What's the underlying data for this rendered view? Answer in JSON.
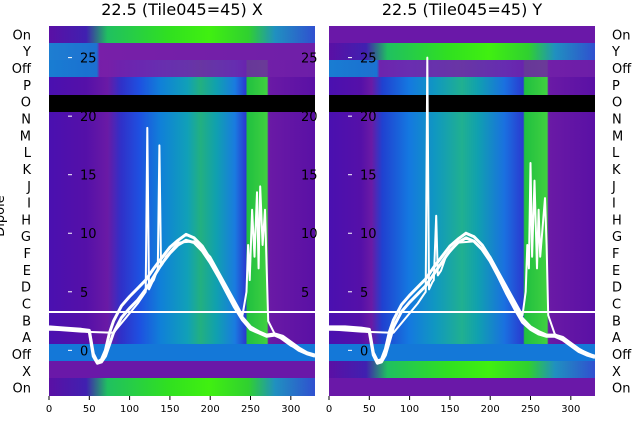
{
  "chart_data": [
    {
      "type": "heatmap",
      "title": "22.5 (Tile045=45) X",
      "ylabel": "Dipole",
      "xlim": [
        0,
        330
      ],
      "x_ticks": [
        0,
        50,
        100,
        150,
        200,
        250,
        300
      ],
      "y_ticks": [
        25,
        20,
        15,
        10,
        5,
        0
      ],
      "ylim": [
        -3.9,
        27.7
      ],
      "dipole_rows": [
        "On",
        "X",
        "Off",
        "A",
        "B",
        "C",
        "D",
        "E",
        "F",
        "G",
        "H",
        "I",
        "J",
        "K",
        "L",
        "M",
        "N",
        "O",
        "P",
        "Off",
        "Y",
        "On"
      ],
      "horizontal_line_row": "B/C",
      "black_row": "O",
      "bright_columns": [
        [
          245,
          272
        ]
      ],
      "series": [
        {
          "x": [
            0,
            20,
            40,
            50,
            55,
            60,
            65,
            70,
            75,
            80,
            90,
            100,
            110,
            120,
            130,
            140,
            150,
            160,
            170,
            180,
            190,
            200,
            210,
            220,
            230,
            240,
            250,
            260,
            270,
            280,
            290,
            300,
            310,
            320,
            330
          ],
          "y": [
            1.8,
            1.8,
            1.7,
            1.6,
            -0.5,
            -1.1,
            -1.0,
            -0.5,
            0.5,
            1.5,
            2.8,
            3.6,
            4.3,
            5.2,
            6.3,
            7.4,
            8.3,
            9.0,
            9.4,
            9.2,
            8.5,
            7.5,
            6.3,
            5.0,
            3.7,
            2.6,
            1.8,
            1.5,
            1.2,
            1.3,
            1.0,
            0.5,
            0.0,
            -0.3,
            -0.5
          ]
        },
        {
          "x": [
            0,
            20,
            40,
            50,
            55,
            60,
            65,
            70,
            75,
            80,
            90,
            100,
            110,
            120,
            130,
            140,
            150,
            160,
            170,
            180,
            190,
            200,
            210,
            220,
            230,
            240,
            250,
            260,
            270,
            280,
            290,
            300,
            310,
            320,
            330
          ],
          "y": [
            2.0,
            1.9,
            1.8,
            1.7,
            -0.3,
            -1.0,
            -0.8,
            0.0,
            1.5,
            2.5,
            3.8,
            4.6,
            5.3,
            6.0,
            7.0,
            7.9,
            8.8,
            9.4,
            9.9,
            9.6,
            8.9,
            7.8,
            6.6,
            5.2,
            3.9,
            2.8,
            2.0,
            1.6,
            1.3,
            1.4,
            1.2,
            0.7,
            0.2,
            -0.2,
            -0.4
          ]
        },
        {
          "x": [
            0,
            40,
            80,
            110,
            120,
            122,
            124,
            126,
            128,
            130,
            135,
            137,
            139,
            141,
            145,
            160,
            180,
            200,
            220,
            240,
            245,
            247,
            249,
            252,
            255,
            258,
            260,
            262,
            265,
            268,
            272,
            280,
            300,
            330
          ],
          "y": [
            1.8,
            1.6,
            1.5,
            4.0,
            5.0,
            19.0,
            5.2,
            5.5,
            5.8,
            6.0,
            7.0,
            17.5,
            7.2,
            7.4,
            8.0,
            9.2,
            9.3,
            8.0,
            5.5,
            3.0,
            5.0,
            9.0,
            6.0,
            12.0,
            8.0,
            13.5,
            7.0,
            14.0,
            9.0,
            12.0,
            2.5,
            1.4,
            0.4,
            -0.5
          ]
        }
      ]
    },
    {
      "type": "heatmap",
      "title": "22.5 (Tile045=45) Y",
      "xlim": [
        0,
        330
      ],
      "x_ticks": [
        0,
        50,
        100,
        150,
        200,
        250,
        300
      ],
      "y_ticks": [
        25,
        20,
        15,
        10,
        5,
        0
      ],
      "ylim": [
        -3.9,
        27.7
      ],
      "dipole_rows": [
        "On",
        "X",
        "Off",
        "A",
        "B",
        "C",
        "D",
        "E",
        "F",
        "G",
        "H",
        "I",
        "J",
        "K",
        "L",
        "M",
        "N",
        "O",
        "P",
        "Off",
        "Y",
        "On"
      ],
      "horizontal_line_row": "B/C",
      "black_row": "O",
      "bright_columns": [
        [
          242,
          270
        ]
      ],
      "series": [
        {
          "x": [
            0,
            20,
            40,
            50,
            55,
            60,
            65,
            70,
            75,
            80,
            90,
            100,
            110,
            120,
            130,
            140,
            150,
            160,
            170,
            180,
            190,
            200,
            210,
            220,
            230,
            240,
            250,
            260,
            270,
            280,
            290,
            300,
            310,
            320,
            330
          ],
          "y": [
            1.8,
            1.8,
            1.7,
            1.6,
            -0.4,
            -1.1,
            -1.0,
            -0.4,
            0.8,
            2.0,
            3.3,
            4.1,
            4.8,
            5.5,
            6.5,
            7.5,
            8.5,
            9.2,
            9.6,
            9.3,
            8.6,
            7.6,
            6.3,
            4.9,
            3.6,
            2.4,
            1.8,
            1.4,
            1.2,
            1.2,
            0.9,
            0.4,
            -0.1,
            -0.4,
            -0.6
          ]
        },
        {
          "x": [
            0,
            20,
            40,
            50,
            55,
            60,
            65,
            70,
            75,
            80,
            90,
            100,
            110,
            120,
            130,
            140,
            150,
            160,
            170,
            180,
            190,
            200,
            210,
            220,
            230,
            240,
            250,
            260,
            270,
            280,
            290,
            300,
            310,
            320,
            330
          ],
          "y": [
            2.0,
            2.0,
            1.9,
            1.8,
            -0.2,
            -0.9,
            -0.8,
            0.1,
            1.6,
            2.6,
            3.9,
            4.7,
            5.4,
            6.1,
            7.1,
            8.0,
            8.9,
            9.5,
            10.0,
            9.7,
            9.0,
            7.9,
            6.6,
            5.2,
            3.9,
            2.7,
            2.0,
            1.6,
            1.3,
            1.3,
            1.1,
            0.6,
            0.1,
            -0.3,
            -0.5
          ]
        },
        {
          "x": [
            0,
            40,
            80,
            110,
            118,
            120,
            122,
            124,
            126,
            128,
            130,
            133,
            135,
            137,
            139,
            145,
            160,
            180,
            200,
            220,
            240,
            244,
            246,
            248,
            250,
            252,
            255,
            258,
            260,
            262,
            265,
            268,
            270,
            272,
            280,
            300,
            330
          ],
          "y": [
            1.8,
            1.6,
            1.5,
            4.0,
            4.8,
            5.0,
            25.0,
            5.2,
            5.5,
            5.8,
            6.0,
            11.5,
            6.4,
            6.6,
            6.8,
            8.0,
            9.2,
            9.3,
            8.0,
            5.5,
            3.0,
            5.0,
            9.0,
            7.0,
            16.0,
            8.0,
            14.5,
            7.0,
            12.0,
            8.0,
            10.5,
            13.0,
            9.0,
            3.0,
            1.4,
            0.4,
            -0.5
          ]
        }
      ]
    }
  ]
}
